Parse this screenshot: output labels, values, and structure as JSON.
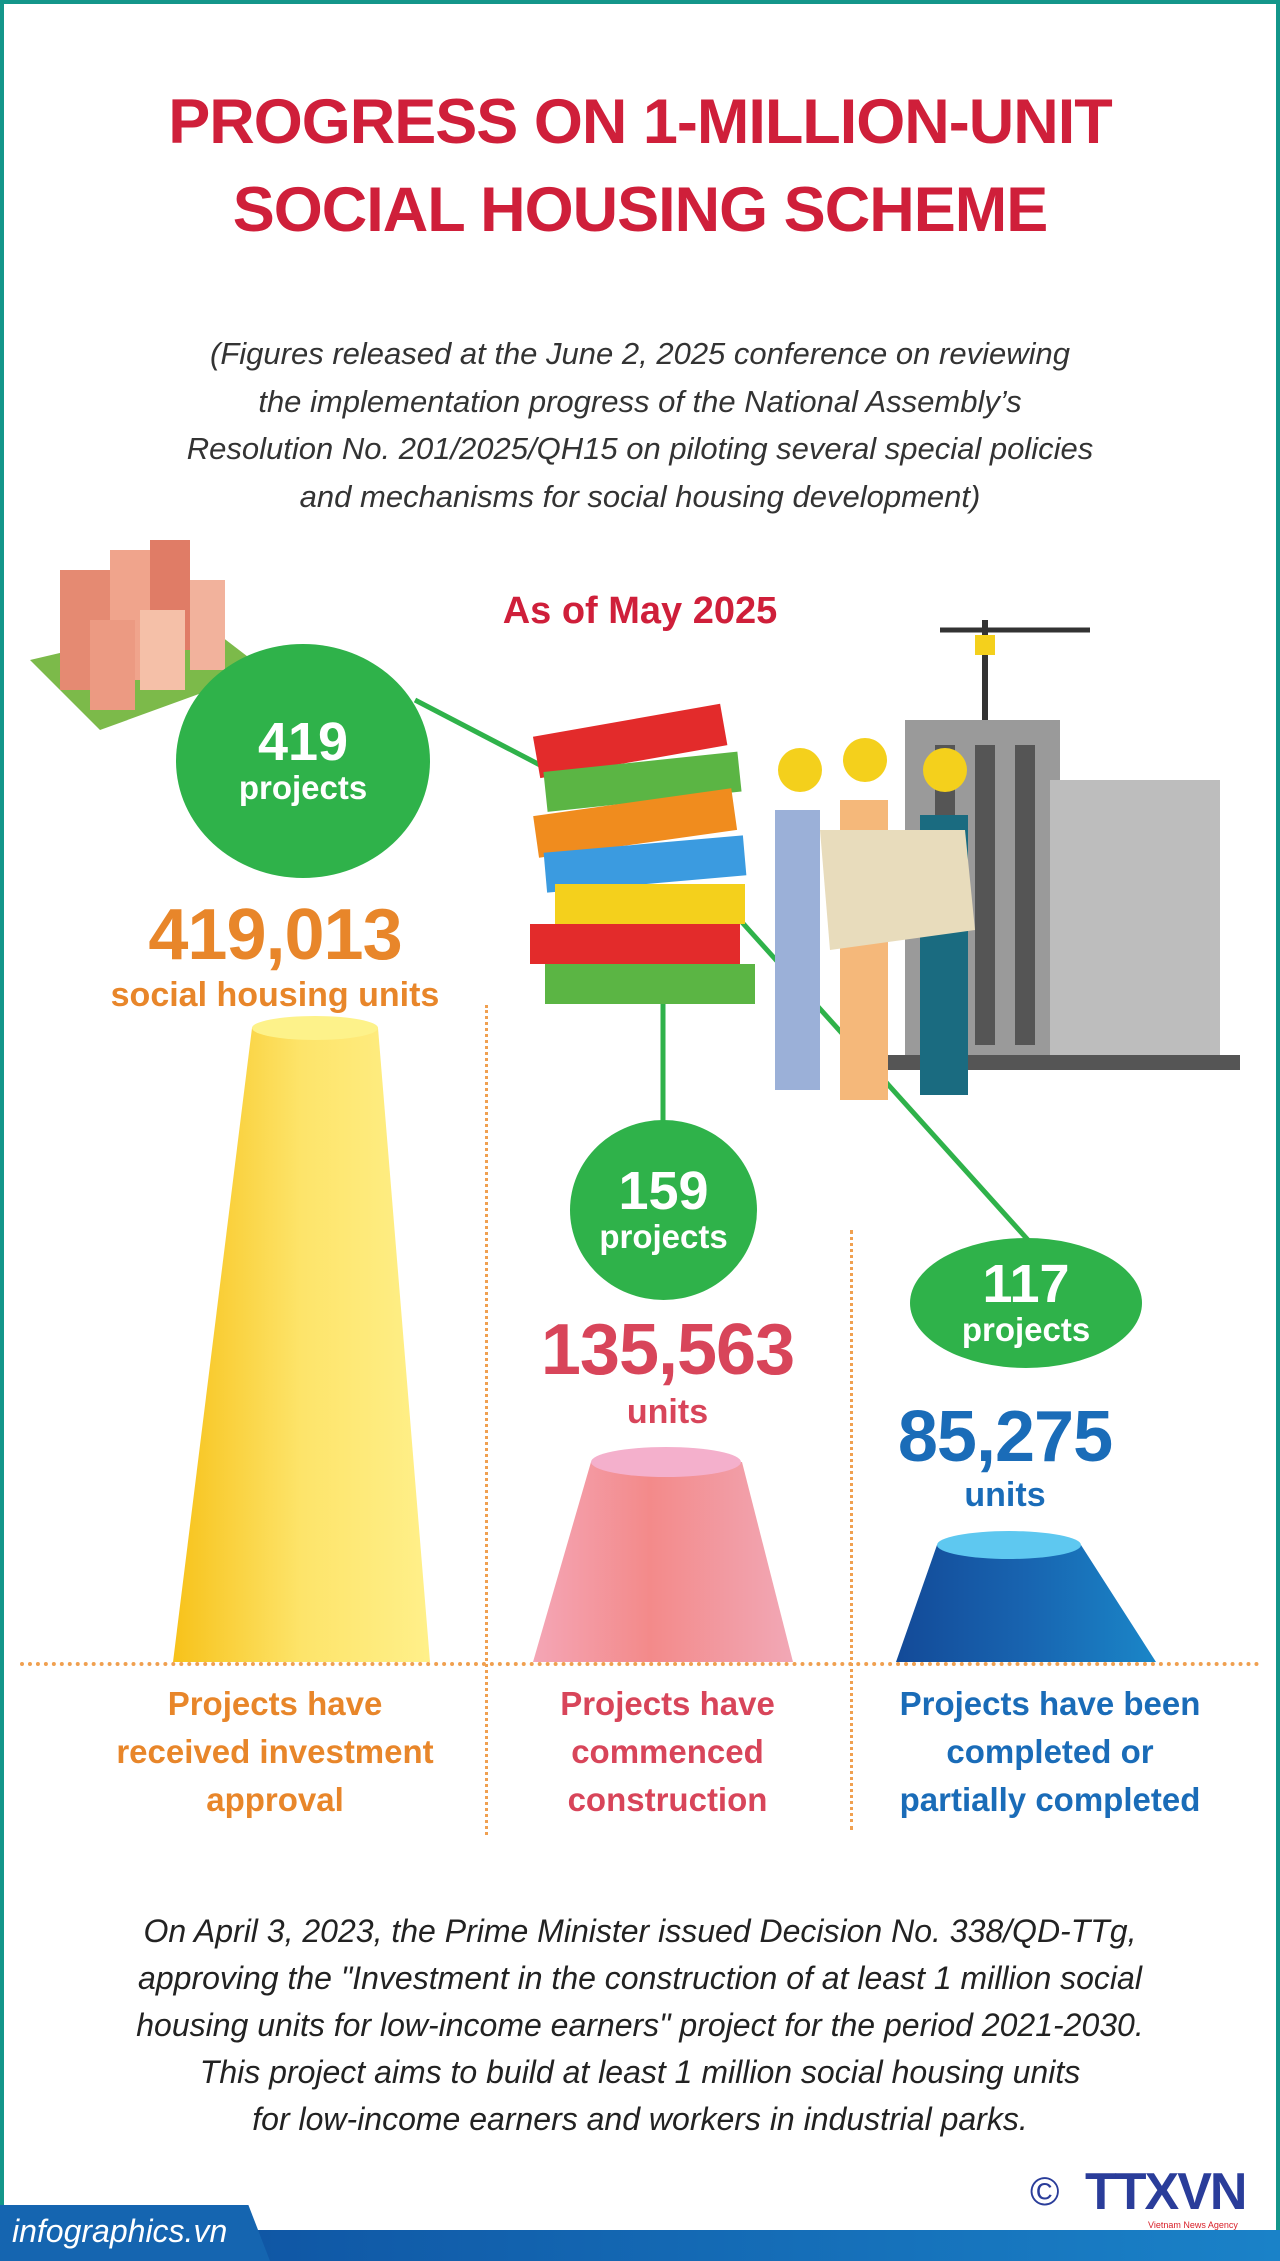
{
  "title": {
    "line1": "PROGRESS ON 1-MILLION-UNIT",
    "line2": "SOCIAL HOUSING SCHEME"
  },
  "subtitle": [
    "(Figures released at the June 2, 2025 conference on reviewing",
    "the implementation progress of the National Assembly’s",
    "Resolution No. 201/2025/QH15 on piloting several special policies",
    "and mechanisms for social housing development)"
  ],
  "as_of": "As of May 2025",
  "colors": {
    "title": "#cf1f3a",
    "bubble": "#2fb24a",
    "approved": "#e8862a",
    "commenced": "#d8455a",
    "completed": "#1a6cb8"
  },
  "stats": [
    {
      "projects": "419",
      "projects_label": "projects",
      "units": "419,013",
      "units_label": "social housing units",
      "label": [
        "Projects have",
        "received investment",
        "approval"
      ]
    },
    {
      "projects": "159",
      "projects_label": "projects",
      "units": "135,563",
      "units_label": "units",
      "label": [
        "Projects have",
        "commenced",
        "construction"
      ]
    },
    {
      "projects": "117",
      "projects_label": "projects",
      "units": "85,275",
      "units_label": "units",
      "label": [
        "Projects have been",
        "completed or",
        "partially completed"
      ]
    }
  ],
  "footnote": [
    "On April 3, 2023, the Prime Minister issued Decision No. 338/QD-TTg,",
    "approving the \"Investment in the construction of at least 1 million social",
    "housing units for low-income earners\" project for the period 2021-2030.",
    "This project aims to build at least 1 million social housing units",
    "for low-income earners and workers in industrial parks."
  ],
  "footer": {
    "site": "infographics.vn",
    "copyright": "©",
    "logo": "TTXVN",
    "agency": "Vietnam News Agency"
  }
}
